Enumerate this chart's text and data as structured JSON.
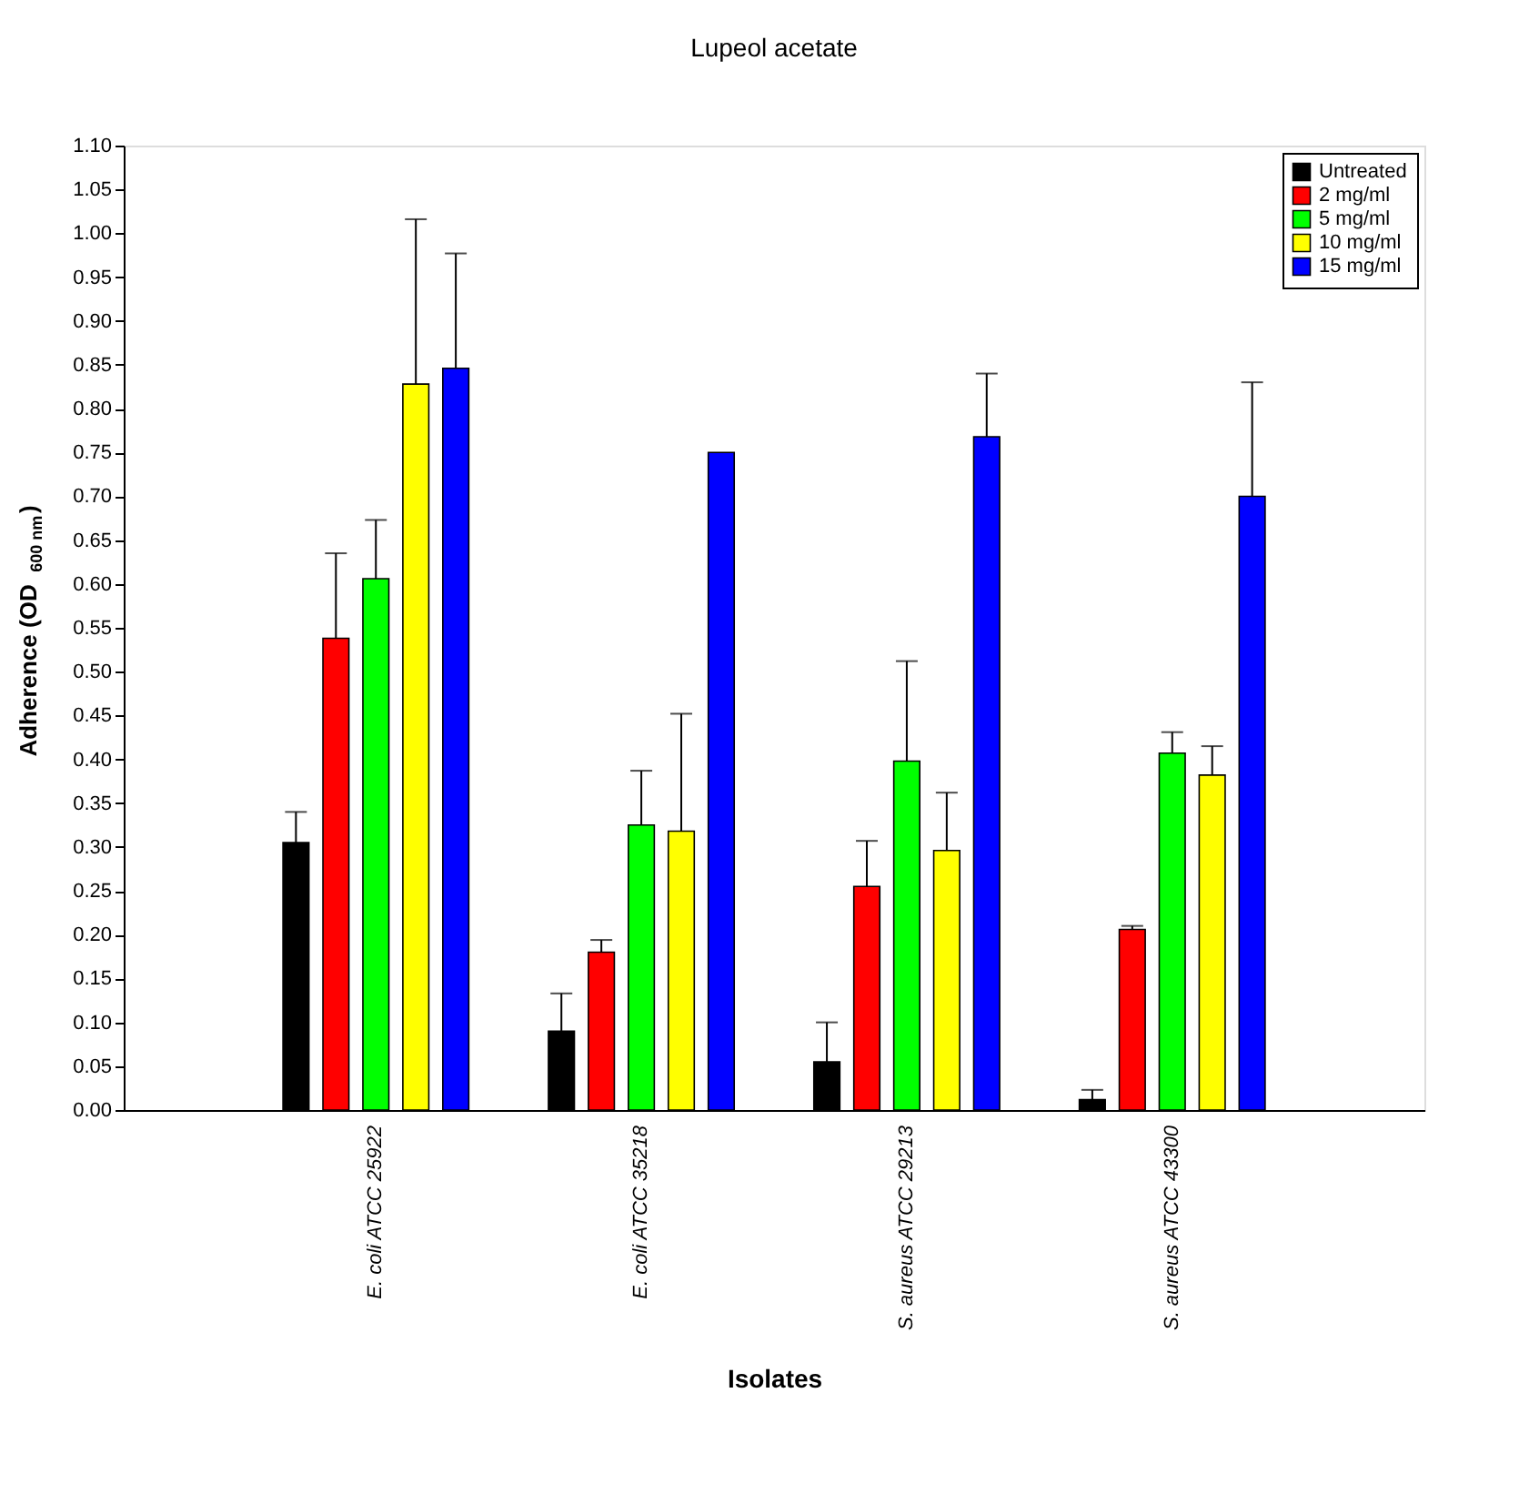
{
  "chart_data": {
    "type": "bar",
    "title": "Lupeol acetate",
    "xlabel": "Isolates",
    "ylabel": "Adherence (OD$_{600 nm}$)",
    "categories": [
      "E. coli ATCC 25922",
      "E. coli ATCC 35218",
      "S. aureus ATCC 29213",
      "S. aureus ATCC 43300"
    ],
    "series": [
      {
        "name": "Untreated",
        "color": "#000000",
        "values": [
          0.305,
          0.09,
          0.055,
          0.012
        ],
        "errors": [
          [
            0.305,
            0.34
          ],
          [
            0.09,
            0.133
          ],
          [
            0.055,
            0.1
          ],
          [
            0.012,
            0.023
          ]
        ]
      },
      {
        "name": "2 mg/ml",
        "color": "#ff0000",
        "values": [
          0.538,
          0.18,
          0.255,
          0.206
        ],
        "errors": [
          [
            0.538,
            0.635
          ],
          [
            0.18,
            0.194
          ],
          [
            0.255,
            0.307
          ],
          [
            0.206,
            0.21
          ]
        ]
      },
      {
        "name": "5 mg/ml",
        "color": "#00ff00",
        "values": [
          0.606,
          0.325,
          0.398,
          0.407
        ],
        "errors": [
          [
            0.606,
            0.673
          ],
          [
            0.325,
            0.387
          ],
          [
            0.398,
            0.512
          ],
          [
            0.407,
            0.431
          ]
        ]
      },
      {
        "name": "10 mg/ml",
        "color": "#ffff00",
        "values": [
          0.828,
          0.318,
          0.296,
          0.382
        ],
        "errors": [
          [
            0.828,
            1.016
          ],
          [
            0.318,
            0.452
          ],
          [
            0.296,
            0.362
          ],
          [
            0.382,
            0.415
          ]
        ]
      },
      {
        "name": "15 mg/ml",
        "color": "#0000ff",
        "values": [
          0.846,
          0.75,
          0.768,
          0.7
        ],
        "errors": [
          [
            0.846,
            0.977
          ],
          null,
          [
            0.768,
            0.84
          ],
          [
            0.7,
            0.83
          ]
        ]
      }
    ],
    "ylim": [
      0,
      1.1
    ],
    "yticks": [
      {
        "value": 0,
        "label": "0.00"
      },
      {
        "value": 0.05,
        "label": "0.05"
      },
      {
        "value": 0.1,
        "label": "0.10"
      },
      {
        "value": 0.15,
        "label": "0.15"
      },
      {
        "value": 0.2,
        "label": "0.20"
      },
      {
        "value": 0.25,
        "label": "0.25"
      },
      {
        "value": 0.3,
        "label": "0.30"
      },
      {
        "value": 0.35,
        "label": "0.35"
      },
      {
        "value": 0.4,
        "label": "0.40"
      },
      {
        "value": 0.45,
        "label": "0.45"
      },
      {
        "value": 0.5,
        "label": "0.50"
      },
      {
        "value": 0.55,
        "label": "0.55"
      },
      {
        "value": 0.6,
        "label": "0.60"
      },
      {
        "value": 0.65,
        "label": "0.65"
      },
      {
        "value": 0.7,
        "label": "0.70"
      },
      {
        "value": 0.75,
        "label": "0.75"
      },
      {
        "value": 0.8,
        "label": "0.80"
      },
      {
        "value": 0.85,
        "label": "0.85"
      },
      {
        "value": 0.9,
        "label": "0.90"
      },
      {
        "value": 0.95,
        "label": "0.95"
      },
      {
        "value": 1.0,
        "label": "1.00"
      },
      {
        "value": 1.05,
        "label": "1.05"
      },
      {
        "value": 1.1,
        "label": "1.10"
      }
    ],
    "legend": "top right",
    "grid": false
  }
}
